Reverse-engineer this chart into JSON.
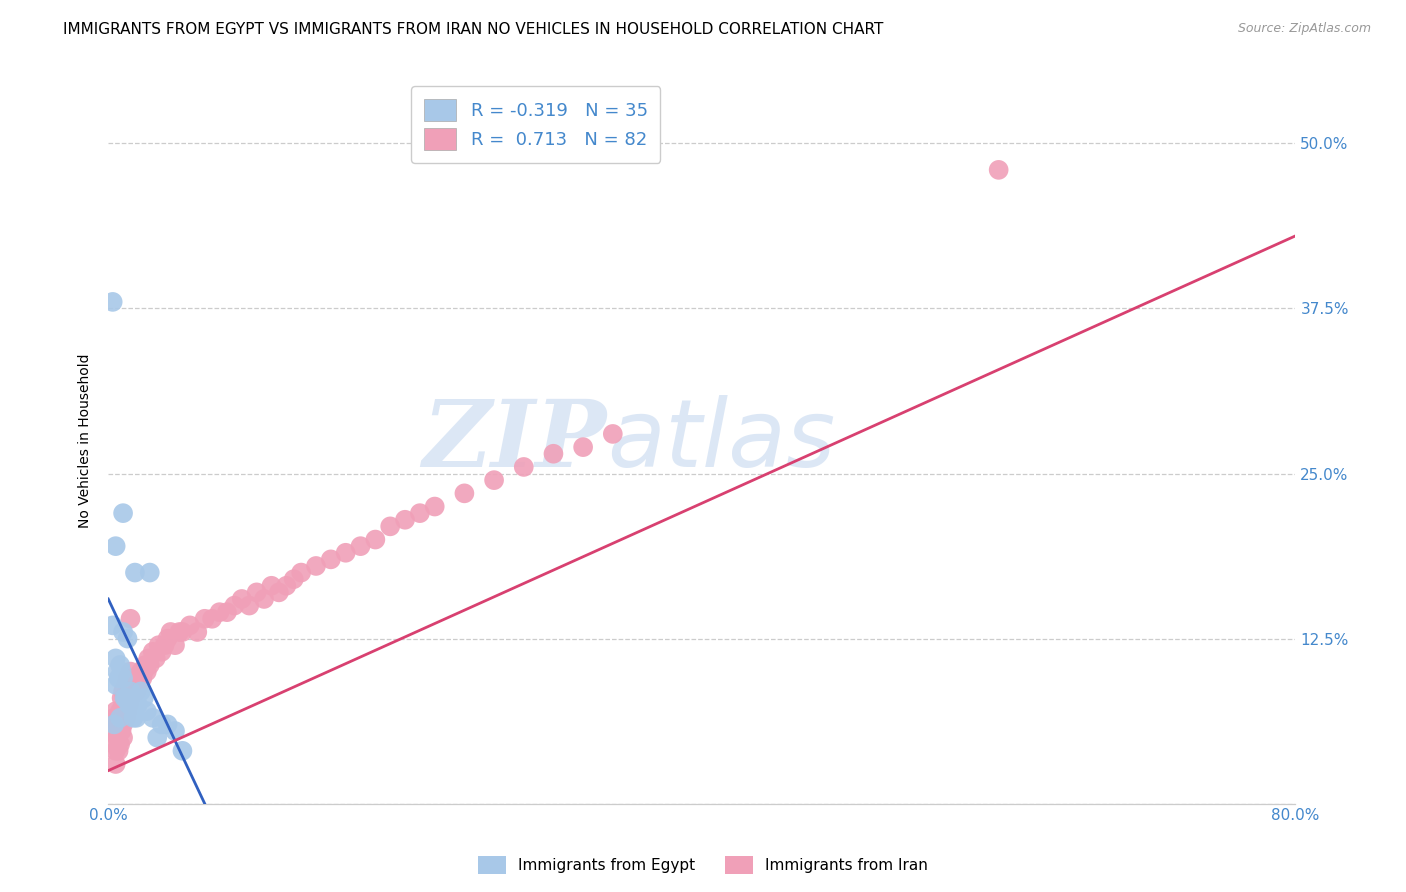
{
  "title": "IMMIGRANTS FROM EGYPT VS IMMIGRANTS FROM IRAN NO VEHICLES IN HOUSEHOLD CORRELATION CHART",
  "source": "Source: ZipAtlas.com",
  "ylabel": "No Vehicles in Household",
  "xlim": [
    0.0,
    0.8
  ],
  "ylim": [
    0.0,
    0.55
  ],
  "xticks": [
    0.0,
    0.1,
    0.2,
    0.3,
    0.4,
    0.5,
    0.6,
    0.7,
    0.8
  ],
  "xticklabels": [
    "0.0%",
    "",
    "",
    "",
    "",
    "",
    "",
    "",
    "80.0%"
  ],
  "yticks": [
    0.0,
    0.125,
    0.25,
    0.375,
    0.5
  ],
  "yticklabels": [
    "",
    "12.5%",
    "25.0%",
    "37.5%",
    "50.0%"
  ],
  "egypt_color": "#a8c8e8",
  "iran_color": "#f0a0b8",
  "egypt_line_color": "#3060c0",
  "iran_line_color": "#d84070",
  "legend_egypt_label": "R = -0.319   N = 35",
  "legend_iran_label": "R =  0.713   N = 82",
  "watermark_zip": "ZIP",
  "watermark_atlas": "atlas",
  "egypt_x": [
    0.003,
    0.003,
    0.004,
    0.005,
    0.005,
    0.006,
    0.007,
    0.008,
    0.008,
    0.009,
    0.01,
    0.01,
    0.011,
    0.012,
    0.013,
    0.014,
    0.015,
    0.016,
    0.017,
    0.018,
    0.019,
    0.02,
    0.022,
    0.024,
    0.026,
    0.028,
    0.03,
    0.033,
    0.036,
    0.04,
    0.045,
    0.05,
    0.005,
    0.01,
    0.015
  ],
  "egypt_y": [
    0.135,
    0.38,
    0.06,
    0.11,
    0.09,
    0.1,
    0.095,
    0.065,
    0.105,
    0.1,
    0.095,
    0.22,
    0.08,
    0.08,
    0.125,
    0.075,
    0.085,
    0.075,
    0.065,
    0.175,
    0.065,
    0.075,
    0.085,
    0.08,
    0.07,
    0.175,
    0.065,
    0.05,
    0.06,
    0.06,
    0.055,
    0.04,
    0.195,
    0.13,
    0.075
  ],
  "iran_x": [
    0.003,
    0.004,
    0.004,
    0.005,
    0.005,
    0.006,
    0.006,
    0.007,
    0.007,
    0.008,
    0.008,
    0.009,
    0.009,
    0.01,
    0.01,
    0.011,
    0.011,
    0.012,
    0.012,
    0.013,
    0.013,
    0.014,
    0.015,
    0.015,
    0.016,
    0.017,
    0.018,
    0.019,
    0.02,
    0.021,
    0.022,
    0.023,
    0.024,
    0.025,
    0.026,
    0.027,
    0.028,
    0.03,
    0.032,
    0.034,
    0.036,
    0.038,
    0.04,
    0.042,
    0.045,
    0.048,
    0.05,
    0.055,
    0.06,
    0.065,
    0.07,
    0.075,
    0.08,
    0.085,
    0.09,
    0.095,
    0.1,
    0.105,
    0.11,
    0.115,
    0.12,
    0.125,
    0.13,
    0.14,
    0.15,
    0.16,
    0.17,
    0.18,
    0.19,
    0.2,
    0.21,
    0.22,
    0.24,
    0.26,
    0.28,
    0.3,
    0.32,
    0.34,
    0.005,
    0.01,
    0.6,
    0.015
  ],
  "iran_y": [
    0.055,
    0.045,
    0.065,
    0.04,
    0.07,
    0.05,
    0.06,
    0.04,
    0.065,
    0.045,
    0.07,
    0.055,
    0.08,
    0.06,
    0.085,
    0.07,
    0.08,
    0.065,
    0.09,
    0.07,
    0.095,
    0.075,
    0.08,
    0.1,
    0.085,
    0.09,
    0.095,
    0.085,
    0.095,
    0.09,
    0.1,
    0.095,
    0.1,
    0.105,
    0.1,
    0.11,
    0.105,
    0.115,
    0.11,
    0.12,
    0.115,
    0.12,
    0.125,
    0.13,
    0.12,
    0.13,
    0.13,
    0.135,
    0.13,
    0.14,
    0.14,
    0.145,
    0.145,
    0.15,
    0.155,
    0.15,
    0.16,
    0.155,
    0.165,
    0.16,
    0.165,
    0.17,
    0.175,
    0.18,
    0.185,
    0.19,
    0.195,
    0.2,
    0.21,
    0.215,
    0.22,
    0.225,
    0.235,
    0.245,
    0.255,
    0.265,
    0.27,
    0.28,
    0.03,
    0.05,
    0.48,
    0.14
  ],
  "egypt_line_x": [
    0.0,
    0.065
  ],
  "egypt_line_y_start": 0.155,
  "egypt_line_y_end": 0.0,
  "iran_line_x": [
    0.0,
    0.8
  ],
  "iran_line_y_start": 0.025,
  "iran_line_y_end": 0.43,
  "background_color": "#ffffff",
  "grid_color": "#cccccc",
  "axis_color": "#4488cc",
  "title_fontsize": 11,
  "axis_label_fontsize": 10,
  "tick_fontsize": 11
}
